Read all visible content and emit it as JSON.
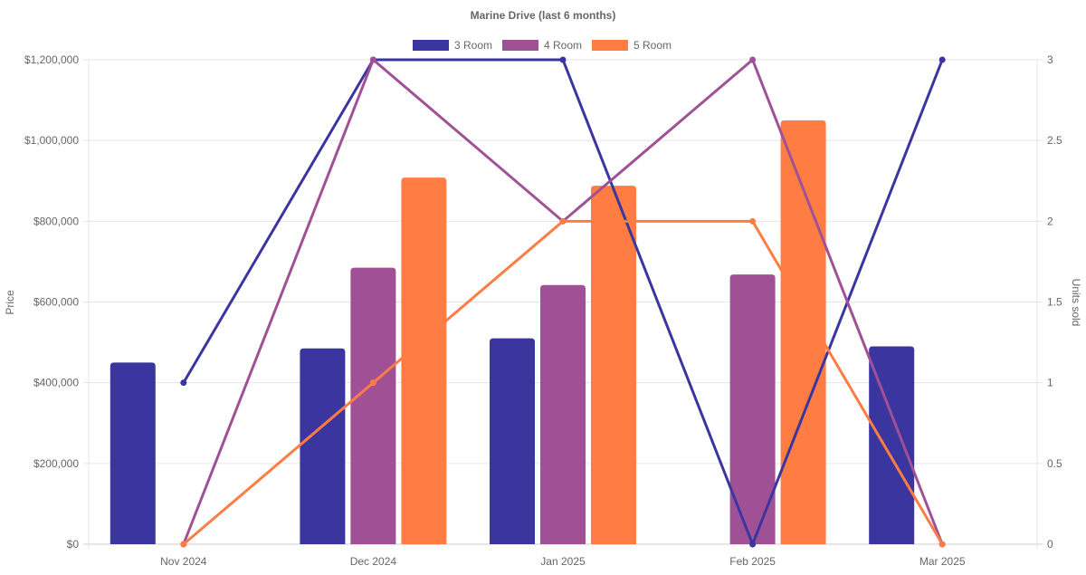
{
  "chart_data": {
    "type": "bar",
    "title": "Marine Drive (last 6 months)",
    "categories": [
      "Nov 2024",
      "Dec 2024",
      "Jan 2025",
      "Feb 2025",
      "Mar 2025"
    ],
    "ylabel": "Price",
    "y2label": "Units sold",
    "ylim": [
      0,
      1200000
    ],
    "y2lim": [
      0,
      3
    ],
    "yticks": [
      "$0",
      "$200,000",
      "$400,000",
      "$600,000",
      "$800,000",
      "$1,000,000",
      "$1,200,000"
    ],
    "y2ticks": [
      "0",
      "0.5",
      "1",
      "1.5",
      "2",
      "2.5",
      "3"
    ],
    "legend_position": "top",
    "grid": true,
    "series": [
      {
        "name": "3 Room",
        "color": "#3b35a0",
        "price": [
          450000,
          485000,
          510000,
          null,
          490000
        ],
        "units": [
          1,
          3,
          3,
          0,
          3
        ]
      },
      {
        "name": "4 Room",
        "color": "#a05195",
        "price": [
          null,
          685000,
          642000,
          668000,
          null
        ],
        "units": [
          0,
          3,
          2,
          3,
          0
        ]
      },
      {
        "name": "5 Room",
        "color": "#ff7c43",
        "price": [
          null,
          908000,
          888000,
          1050000,
          null
        ],
        "units": [
          0,
          1,
          2,
          2,
          0
        ]
      }
    ]
  }
}
